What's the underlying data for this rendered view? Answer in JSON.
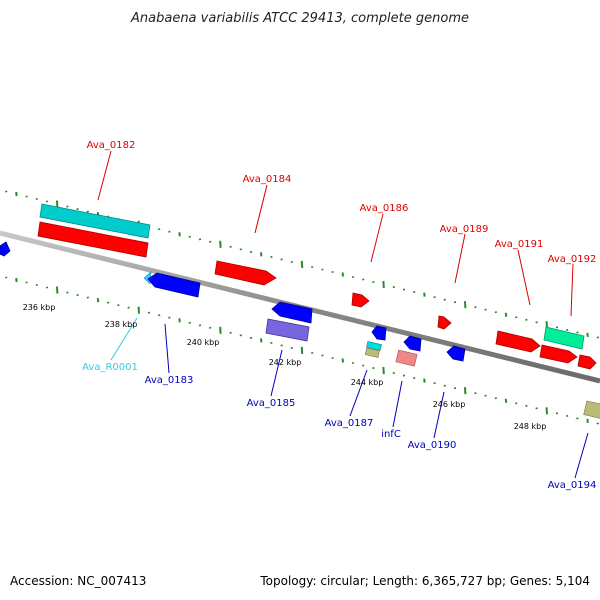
{
  "title": "Anabaena variabilis ATCC 29413, complete genome",
  "footer": {
    "accession": "Accession: NC_007413",
    "topology": "Topology: circular; Length: 6,365,727 bp; Genes: 5,104"
  },
  "scale_labels": [
    "236 kbp",
    "238 kbp",
    "240 kbp",
    "242 kbp",
    "244 kbp",
    "246 kbp",
    "248 kbp"
  ],
  "gene_labels_top": [
    "Ava_0182",
    "Ava_0184",
    "Ava_0186",
    "Ava_0189",
    "Ava_0191",
    "Ava_0192"
  ],
  "gene_labels_bottom": [
    "Ava_R0001",
    "Ava_0183",
    "Ava_0185",
    "Ava_0187",
    "infC",
    "Ava_0190",
    "Ava_0194"
  ],
  "colors": {
    "forward_gene": "#ff0000",
    "reverse_gene": "#0000ff",
    "rna_gene": "#00cccc",
    "other_forward": "#00ee99",
    "other_reverse": "#7766dd",
    "pink_gene": "#ee8888",
    "olive_gene": "#bbbb77",
    "tick": "#2a8a2a",
    "backbone": "#888888",
    "label_top": "#dd0000",
    "label_bottom": "#0000bb",
    "label_rna": "#33ccdd"
  }
}
